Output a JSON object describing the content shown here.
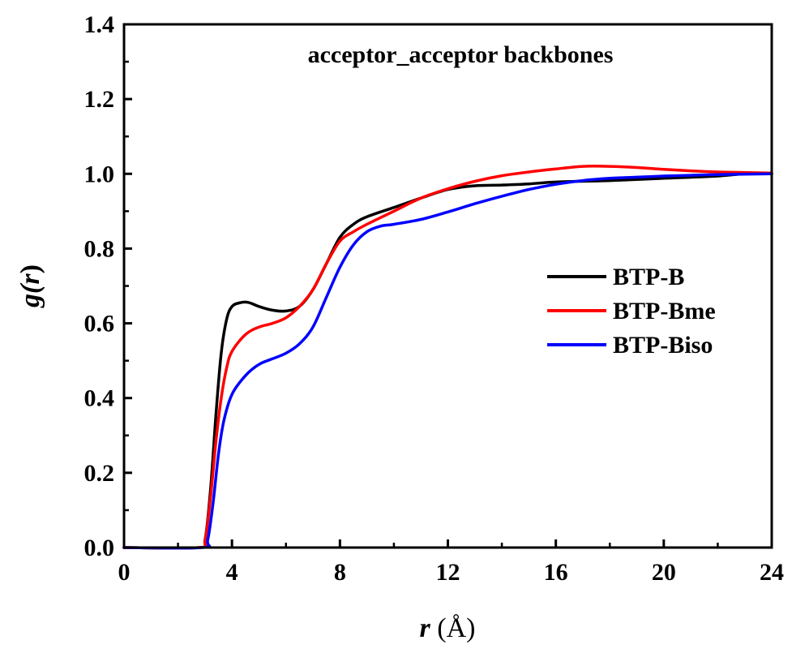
{
  "chart_data": {
    "type": "line",
    "title": "acceptor_acceptor backbones",
    "xlabel": {
      "var": "r",
      "unit": " (Å)"
    },
    "ylabel": {
      "var": "g(",
      "var_italic": "r",
      "close": ")"
    },
    "xlim": [
      0,
      24
    ],
    "ylim": [
      0,
      1.4
    ],
    "x_ticks": [
      0,
      4,
      8,
      12,
      16,
      20,
      24
    ],
    "y_ticks": [
      0.0,
      0.2,
      0.4,
      0.6,
      0.8,
      1.0,
      1.2,
      1.4
    ],
    "x_tick_labels": [
      "0",
      "4",
      "8",
      "12",
      "16",
      "20",
      "24"
    ],
    "y_tick_labels": [
      "0.0",
      "0.2",
      "0.4",
      "0.6",
      "0.8",
      "1.0",
      "1.2",
      "1.4"
    ],
    "grid": false,
    "legend_position": "center-right",
    "series": [
      {
        "name": "BTP-B",
        "color": "#000000",
        "points": [
          [
            0,
            0
          ],
          [
            2.8,
            0
          ],
          [
            3.0,
            0.02
          ],
          [
            3.2,
            0.15
          ],
          [
            3.4,
            0.35
          ],
          [
            3.6,
            0.52
          ],
          [
            3.8,
            0.61
          ],
          [
            4.0,
            0.645
          ],
          [
            4.3,
            0.655
          ],
          [
            4.6,
            0.656
          ],
          [
            5.0,
            0.645
          ],
          [
            5.5,
            0.635
          ],
          [
            6.0,
            0.633
          ],
          [
            6.5,
            0.645
          ],
          [
            7.0,
            0.69
          ],
          [
            7.5,
            0.76
          ],
          [
            8.0,
            0.83
          ],
          [
            8.5,
            0.865
          ],
          [
            9.0,
            0.885
          ],
          [
            10.0,
            0.91
          ],
          [
            11.0,
            0.935
          ],
          [
            12.0,
            0.958
          ],
          [
            13.0,
            0.968
          ],
          [
            14.0,
            0.97
          ],
          [
            15.0,
            0.973
          ],
          [
            16.0,
            0.978
          ],
          [
            18.0,
            0.982
          ],
          [
            20.0,
            0.988
          ],
          [
            22.0,
            0.994
          ],
          [
            23.0,
            1.0
          ],
          [
            24.0,
            1.0
          ]
        ]
      },
      {
        "name": "BTP-Bme",
        "color": "#ff0000",
        "points": [
          [
            0,
            0
          ],
          [
            2.8,
            0
          ],
          [
            3.0,
            0.02
          ],
          [
            3.2,
            0.13
          ],
          [
            3.4,
            0.28
          ],
          [
            3.6,
            0.4
          ],
          [
            3.8,
            0.48
          ],
          [
            4.0,
            0.525
          ],
          [
            4.5,
            0.57
          ],
          [
            5.0,
            0.59
          ],
          [
            5.5,
            0.6
          ],
          [
            6.0,
            0.615
          ],
          [
            6.5,
            0.645
          ],
          [
            7.0,
            0.69
          ],
          [
            7.5,
            0.76
          ],
          [
            8.0,
            0.82
          ],
          [
            8.5,
            0.845
          ],
          [
            9.0,
            0.865
          ],
          [
            10.0,
            0.9
          ],
          [
            11.0,
            0.935
          ],
          [
            12.0,
            0.96
          ],
          [
            13.0,
            0.98
          ],
          [
            14.0,
            0.995
          ],
          [
            15.0,
            1.005
          ],
          [
            16.0,
            1.013
          ],
          [
            17.0,
            1.02
          ],
          [
            18.0,
            1.02
          ],
          [
            19.0,
            1.017
          ],
          [
            20.0,
            1.012
          ],
          [
            21.0,
            1.008
          ],
          [
            22.0,
            1.005
          ],
          [
            24.0,
            1.002
          ]
        ]
      },
      {
        "name": "BTP-Biso",
        "color": "#0000ff",
        "points": [
          [
            0,
            0
          ],
          [
            2.9,
            0
          ],
          [
            3.1,
            0.02
          ],
          [
            3.3,
            0.12
          ],
          [
            3.5,
            0.25
          ],
          [
            3.7,
            0.34
          ],
          [
            4.0,
            0.41
          ],
          [
            4.5,
            0.46
          ],
          [
            5.0,
            0.49
          ],
          [
            5.5,
            0.505
          ],
          [
            6.0,
            0.52
          ],
          [
            6.5,
            0.545
          ],
          [
            7.0,
            0.59
          ],
          [
            7.5,
            0.67
          ],
          [
            8.0,
            0.75
          ],
          [
            8.5,
            0.81
          ],
          [
            9.0,
            0.845
          ],
          [
            9.5,
            0.86
          ],
          [
            10.0,
            0.865
          ],
          [
            11.0,
            0.878
          ],
          [
            12.0,
            0.898
          ],
          [
            13.0,
            0.92
          ],
          [
            14.0,
            0.94
          ],
          [
            15.0,
            0.958
          ],
          [
            16.0,
            0.972
          ],
          [
            17.0,
            0.982
          ],
          [
            18.0,
            0.988
          ],
          [
            19.0,
            0.991
          ],
          [
            20.0,
            0.994
          ],
          [
            21.0,
            0.996
          ],
          [
            22.0,
            0.998
          ],
          [
            24.0,
            1.0
          ]
        ]
      }
    ]
  }
}
